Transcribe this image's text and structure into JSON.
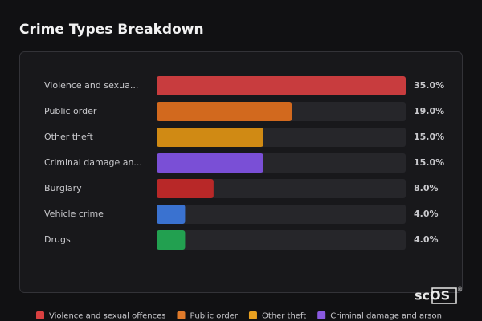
{
  "chart_data": {
    "type": "hbar",
    "title": "Crime Types Breakdown",
    "categories": [
      "Violence and sexua...",
      "Public order",
      "Other theft",
      "Criminal damage an...",
      "Burglary",
      "Vehicle crime",
      "Drugs"
    ],
    "values": [
      35.0,
      19.0,
      15.0,
      15.0,
      8.0,
      4.0,
      4.0
    ],
    "value_labels": [
      "35.0%",
      "19.0%",
      "15.0%",
      "15.0%",
      "8.0%",
      "4.0%",
      "4.0%"
    ],
    "colors": [
      "#c83c3e",
      "#d2691e",
      "#d08a14",
      "#7a4fd6",
      "#b82828",
      "#3a72d0",
      "#22a050"
    ],
    "xlim": [
      0,
      35
    ],
    "legend": [
      {
        "name": "Violence and sexual offences",
        "color": "#d94040"
      },
      {
        "name": "Public order",
        "color": "#e07a2a"
      },
      {
        "name": "Other theft",
        "color": "#e8a020"
      },
      {
        "name": "Criminal damage and arson",
        "color": "#8a5ae0"
      }
    ],
    "watermark": "scOS",
    "watermark_mark": "®"
  }
}
